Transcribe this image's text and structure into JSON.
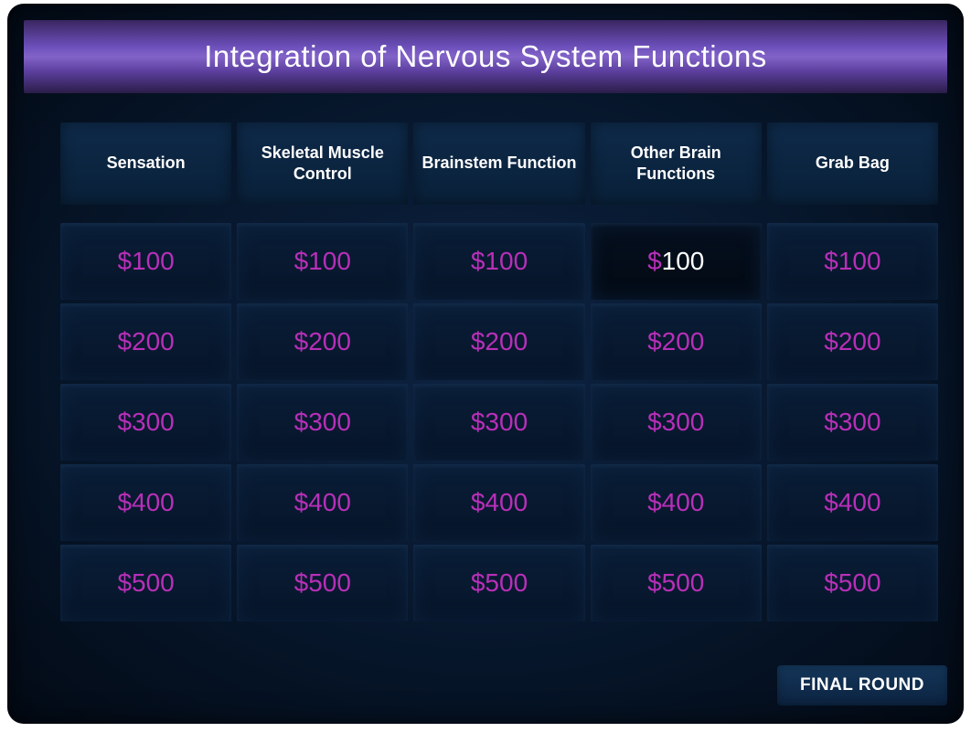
{
  "title": "Integration of Nervous System Functions",
  "categories": [
    "Sensation",
    "Skeletal Muscle Control",
    "Brainstem Function",
    "Other Brain Functions",
    "Grab Bag"
  ],
  "values": [
    "$100",
    "$200",
    "$300",
    "$400",
    "$500"
  ],
  "highlighted": {
    "row": 0,
    "col": 3,
    "dollar": "$",
    "num": "100"
  },
  "finalRound": "FINAL ROUND",
  "colors": {
    "valueText": "#b82fb8",
    "highlightNum": "#ffffff",
    "categoryText": "#ffffff",
    "titleText": "#ffffff"
  }
}
